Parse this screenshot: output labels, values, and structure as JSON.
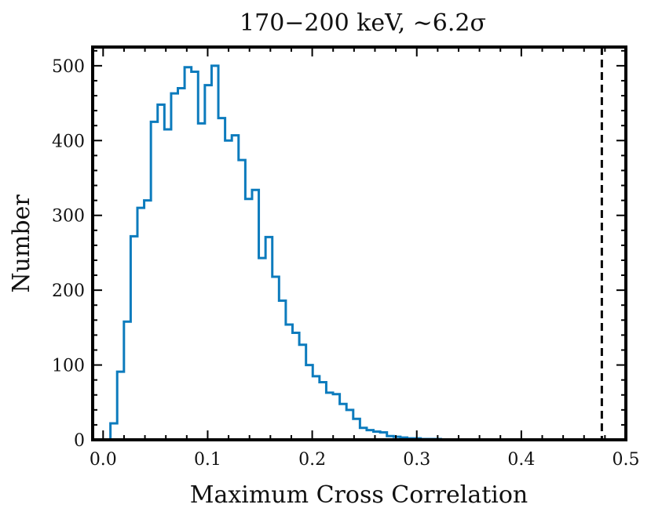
{
  "chart_data": {
    "type": "histogram",
    "title": "170−200 keV, ∼6.2σ",
    "xlabel": "Maximum Cross Correlation",
    "ylabel": "Number",
    "xlim": [
      -0.01,
      0.5
    ],
    "ylim": [
      0,
      525
    ],
    "xticks": [
      0.0,
      0.1,
      0.2,
      0.3,
      0.4,
      0.5
    ],
    "xtick_labels": [
      "0.0",
      "0.1",
      "0.2",
      "0.3",
      "0.4",
      "0.5"
    ],
    "yticks": [
      0,
      100,
      200,
      300,
      400,
      500
    ],
    "ytick_labels": [
      "0",
      "100",
      "200",
      "300",
      "400",
      "500"
    ],
    "bin_start": 0.007,
    "bin_width": 0.00645,
    "counts": [
      22,
      91,
      158,
      272,
      310,
      320,
      425,
      448,
      415,
      463,
      470,
      498,
      492,
      423,
      474,
      500,
      430,
      400,
      407,
      374,
      322,
      334,
      243,
      271,
      218,
      186,
      154,
      143,
      127,
      100,
      85,
      77,
      63,
      61,
      48,
      40,
      28,
      16,
      13,
      11,
      10,
      5,
      4,
      3,
      2,
      2,
      1,
      1,
      1,
      0
    ],
    "vline": {
      "x": 0.477,
      "style": "dashed",
      "color": "#000000"
    },
    "series_color": "#0C7BBD",
    "grid": false
  }
}
